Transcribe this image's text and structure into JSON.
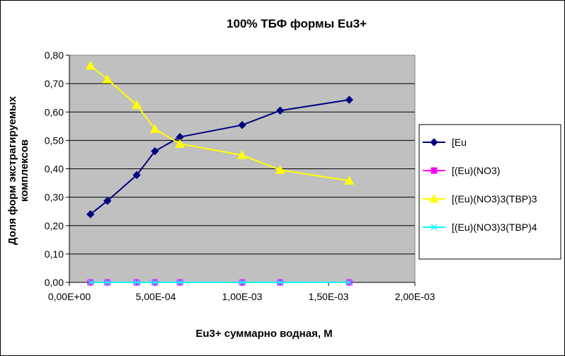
{
  "chart_data": {
    "type": "line",
    "title": "100%  ТБФ  формы Eu3+",
    "xlabel": "Eu3+ суммарно   водная, М",
    "ylabel": "Доля форм экстрагируемых комплексов",
    "ylabel_lines": [
      "Доля форм экстрагируемых",
      "комплексов"
    ],
    "xlim": [
      0,
      0.002
    ],
    "ylim": [
      0,
      0.8
    ],
    "x_ticks": [
      0,
      0.0005,
      0.001,
      0.0015,
      0.002
    ],
    "x_tick_labels": [
      "0,00E+00",
      "5,00E-04",
      "1,00E-03",
      "1,50E-03",
      "2,00E-03"
    ],
    "y_ticks": [
      0,
      0.1,
      0.2,
      0.3,
      0.4,
      0.5,
      0.6,
      0.7,
      0.8
    ],
    "y_tick_labels": [
      "0,00",
      "0,10",
      "0,20",
      "0,30",
      "0,40",
      "0,50",
      "0,60",
      "0,70",
      "0,80"
    ],
    "grid": "horizontal",
    "legend_position": "right",
    "plot_background": "#c0c0c0",
    "x": [
      0.000122,
      0.00022,
      0.00039,
      0.000495,
      0.00064,
      0.001,
      0.00122,
      0.00162
    ],
    "series": [
      {
        "name": "[Eu",
        "color": "#000080",
        "marker": "diamond",
        "values": [
          0.24,
          0.287,
          0.378,
          0.462,
          0.512,
          0.554,
          0.605,
          0.643
        ]
      },
      {
        "name": "[(Eu)(NO3)",
        "color": "#ff00ff",
        "marker": "square",
        "values": [
          0,
          0,
          0,
          0,
          0,
          0,
          0,
          0
        ]
      },
      {
        "name": "[(Eu)(NO3)3(TBP)3",
        "color": "#ffff00",
        "marker": "triangle",
        "values": [
          0.763,
          0.715,
          0.625,
          0.54,
          0.488,
          0.448,
          0.396,
          0.358
        ]
      },
      {
        "name": "[(Eu)(NO3)3(TBP)4",
        "color": "#00ffff",
        "marker": "x",
        "values": [
          0,
          0,
          0,
          0,
          0,
          0,
          0,
          0
        ]
      }
    ]
  }
}
